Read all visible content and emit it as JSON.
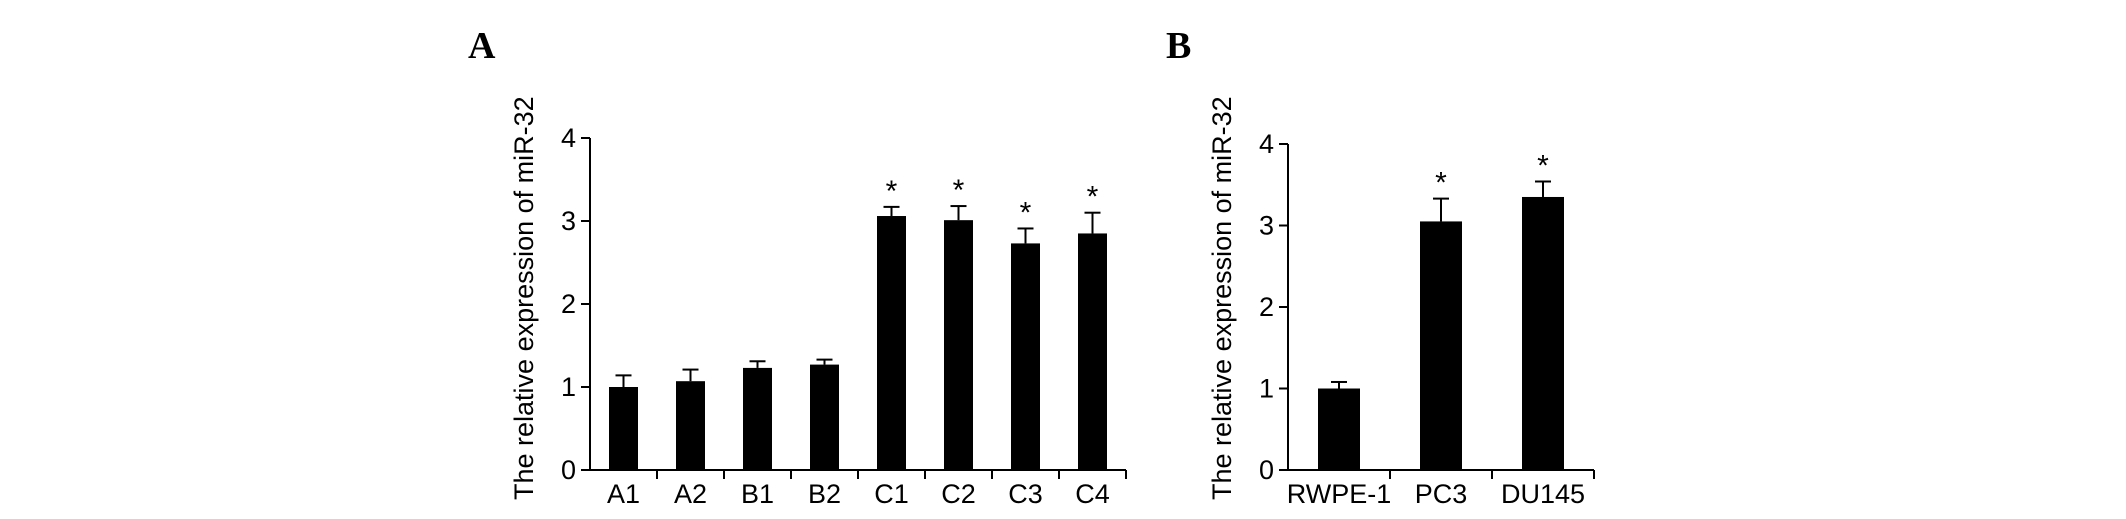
{
  "chart_data": [
    {
      "type": "bar",
      "panel_label": "A",
      "ylabel": "The relative expression of miR-32",
      "xlabel": "",
      "categories": [
        "A1",
        "A2",
        "B1",
        "B2",
        "C1",
        "C2",
        "C3",
        "C4"
      ],
      "values": [
        1.0,
        1.07,
        1.23,
        1.27,
        3.06,
        3.01,
        2.73,
        2.85
      ],
      "errors": [
        0.14,
        0.14,
        0.08,
        0.06,
        0.11,
        0.17,
        0.18,
        0.25
      ],
      "significance": [
        "",
        "",
        "",
        "",
        "*",
        "*",
        "*",
        "*"
      ],
      "ylim": [
        0,
        4
      ],
      "yticks": [
        "0",
        "1",
        "2",
        "3",
        "4"
      ],
      "bar_color": "#000000",
      "grid": false,
      "legend": "none"
    },
    {
      "type": "bar",
      "panel_label": "B",
      "ylabel": "The relative expression of miR-32",
      "xlabel": "",
      "categories": [
        "RWPE-1",
        "PC3",
        "DU145"
      ],
      "values": [
        1.0,
        3.05,
        3.35
      ],
      "errors": [
        0.08,
        0.28,
        0.19
      ],
      "significance": [
        "",
        "*",
        "*"
      ],
      "ylim": [
        0,
        4
      ],
      "yticks": [
        "0",
        "1",
        "2",
        "3",
        "4"
      ],
      "bar_color": "#000000",
      "grid": false,
      "legend": "none"
    }
  ]
}
